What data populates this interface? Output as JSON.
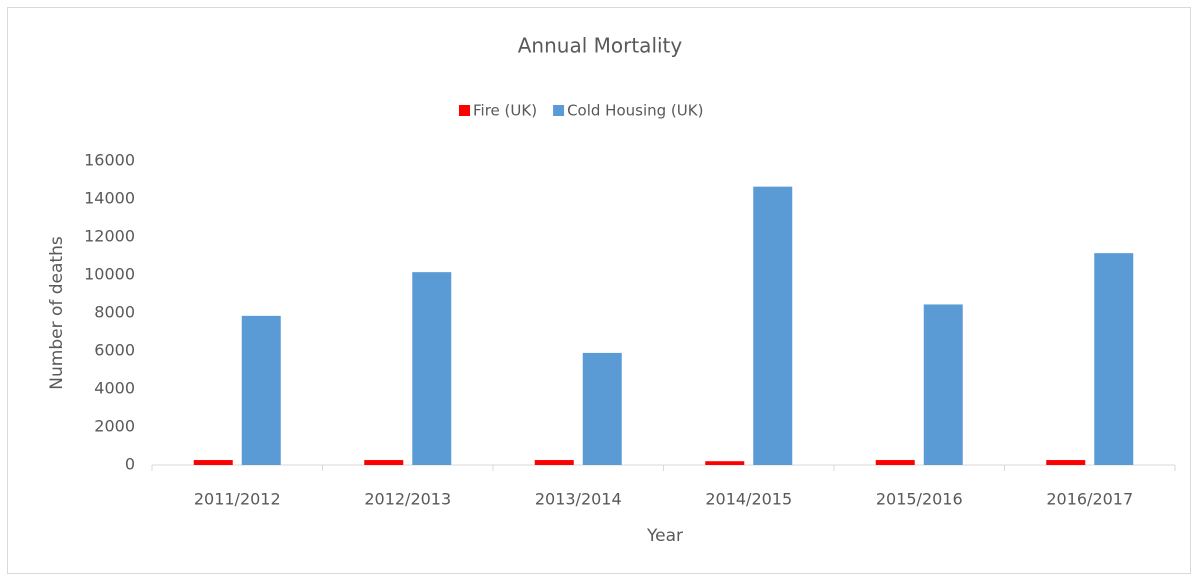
{
  "chart_data": {
    "type": "bar",
    "title": "Annual Mortality",
    "x_label": "Year",
    "y_label": "Number of deaths",
    "categories": [
      "2011/2012",
      "2012/2013",
      "2013/2014",
      "2014/2015",
      "2015/2016",
      "2016/2017"
    ],
    "series": [
      {
        "name": "Fire (UK)",
        "color": "#ff0000",
        "values": [
          260,
          260,
          260,
          200,
          260,
          260
        ]
      },
      {
        "name": "Cold Housing (UK)",
        "color": "#5b9bd5",
        "values": [
          7850,
          10150,
          5900,
          14650,
          8450,
          11150
        ]
      }
    ],
    "ylim": [
      0,
      16000
    ],
    "yticks": [
      0,
      2000,
      4000,
      6000,
      8000,
      10000,
      12000,
      14000,
      16000
    ],
    "grid": false,
    "legend": "top"
  }
}
